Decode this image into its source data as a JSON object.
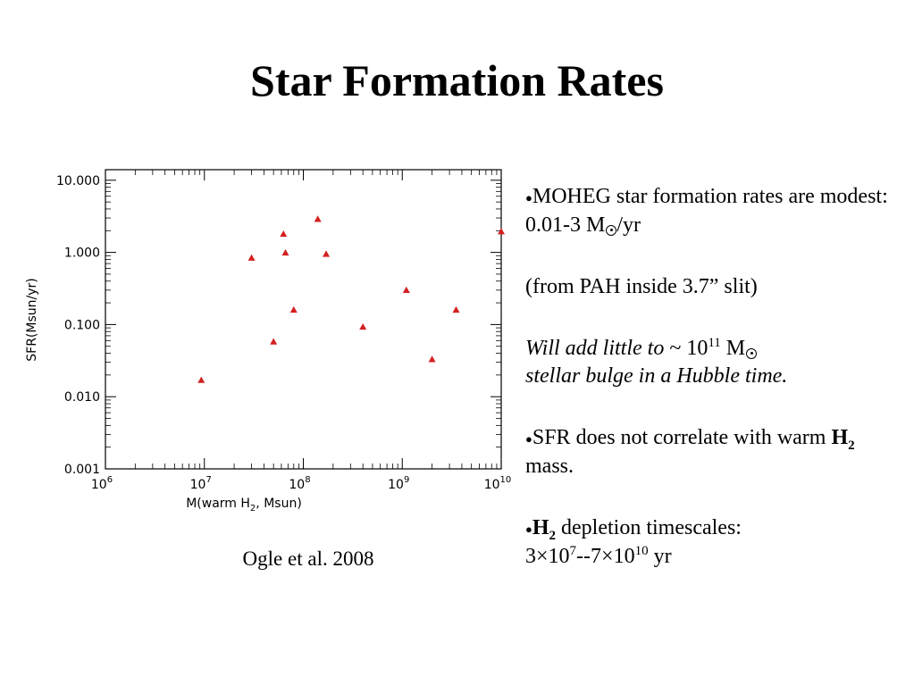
{
  "title": "Star Formation Rates",
  "caption": "Ogle et al. 2008",
  "bullets": {
    "b1_prefix": "MOHEG star formation rates are modest:  0.01-3 M",
    "b1_suffix": "/yr",
    "b2": "(from PAH inside 3.7” slit)",
    "b3_prefix": "Will add little to",
    "b3_tilde": " ~ 10",
    "b3_exp": "11",
    "b3_m": " M",
    "b3_suffix": "stellar bulge in a Hubble time.",
    "b4_prefix": "SFR does not correlate with warm ",
    "b4_h": "H",
    "b4_sub": "2",
    "b4_suffix": " mass.",
    "b5_h": "H",
    "b5_sub": "2",
    "b5_suffix": " depletion timescales:",
    "b5_line2_a": "3×10",
    "b5_exp1": "7",
    "b5_line2_b": "--7×10",
    "b5_exp2": "10",
    "b5_line2_c": " yr"
  },
  "chart_data": {
    "type": "scatter",
    "xlabel": "M(warm H",
    "xlabel_sub": "2",
    "xlabel_suffix": ", Msun)",
    "ylabel": "SFR(Msun/yr)",
    "x_scale": "log",
    "y_scale": "log",
    "xlim": [
      1000000,
      10000000000
    ],
    "ylim": [
      0.001,
      14
    ],
    "x_ticks": [
      {
        "value": 1000000,
        "base": "10",
        "exp": "6"
      },
      {
        "value": 10000000,
        "base": "10",
        "exp": "7"
      },
      {
        "value": 100000000,
        "base": "10",
        "exp": "8"
      },
      {
        "value": 1000000000,
        "base": "10",
        "exp": "9"
      },
      {
        "value": 10000000000,
        "base": "10",
        "exp": "10"
      }
    ],
    "y_ticks": [
      {
        "value": 0.001,
        "label": "0.001"
      },
      {
        "value": 0.01,
        "label": "0.010"
      },
      {
        "value": 0.1,
        "label": "0.100"
      },
      {
        "value": 1,
        "label": "1.000"
      },
      {
        "value": 10,
        "label": "10.000"
      }
    ],
    "marker_color": "#d42020",
    "marker": "triangle",
    "grid": false,
    "points": [
      {
        "x": 9300000,
        "y": 0.017
      },
      {
        "x": 30000000,
        "y": 0.84
      },
      {
        "x": 50000000,
        "y": 0.058
      },
      {
        "x": 63000000,
        "y": 1.8
      },
      {
        "x": 66000000,
        "y": 0.99
      },
      {
        "x": 80000000,
        "y": 0.16
      },
      {
        "x": 140000000,
        "y": 2.9
      },
      {
        "x": 170000000,
        "y": 0.95
      },
      {
        "x": 400000000,
        "y": 0.093
      },
      {
        "x": 1100000000,
        "y": 0.3
      },
      {
        "x": 2000000000,
        "y": 0.033
      },
      {
        "x": 3500000000,
        "y": 0.16
      },
      {
        "x": 10000000000,
        "y": 1.95
      }
    ]
  }
}
